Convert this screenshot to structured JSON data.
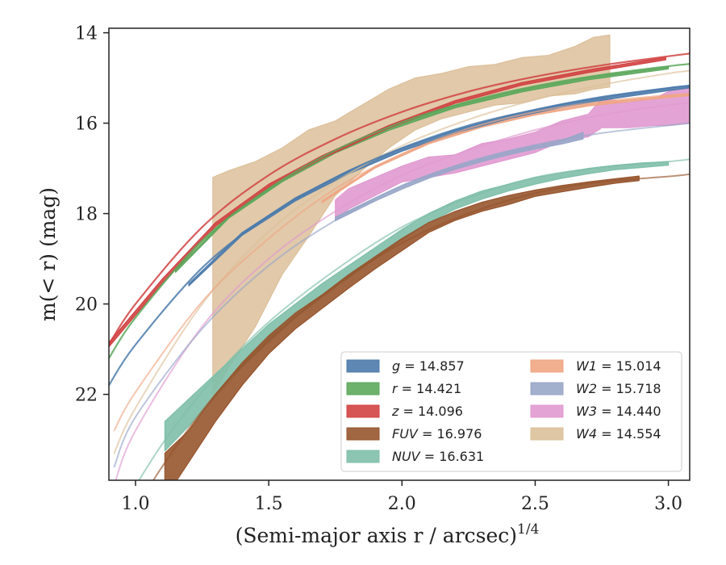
{
  "chart_data": {
    "type": "area",
    "title": "",
    "xlabel": "(Semi-major axis r / arcsec)",
    "xlabel_exponent": "1/4",
    "ylabel": "m(< r) (mag)",
    "xlim": [
      0.9,
      3.08
    ],
    "ylim": [
      23.9,
      13.9
    ],
    "y_inverted": true,
    "x_ticks": [
      1.0,
      1.5,
      2.0,
      2.5,
      3.0
    ],
    "x_tick_labels": [
      "1.0",
      "1.5",
      "2.0",
      "2.5",
      "3.0"
    ],
    "y_ticks": [
      14,
      16,
      18,
      20,
      22
    ],
    "y_tick_labels": [
      "14",
      "16",
      "18",
      "20",
      "22"
    ],
    "grid": false,
    "legend_position": "lower-right",
    "legend_columns": 2,
    "series": [
      {
        "name": "g",
        "label_value": "14.857",
        "color": "#4c7bab",
        "model": [
          [
            0.9,
            21.8
          ],
          [
            1.0,
            20.9
          ],
          [
            1.25,
            19.2
          ],
          [
            1.5,
            18.05
          ],
          [
            1.75,
            17.2
          ],
          [
            2.0,
            16.55
          ],
          [
            2.25,
            16.05
          ],
          [
            2.5,
            15.7
          ],
          [
            2.75,
            15.42
          ],
          [
            3.0,
            15.22
          ],
          [
            3.08,
            15.17
          ]
        ],
        "band": [
          [
            1.2,
            19.55,
            19.6
          ],
          [
            1.4,
            18.42,
            18.48
          ],
          [
            1.6,
            17.65,
            17.72
          ],
          [
            1.8,
            17.05,
            17.12
          ],
          [
            2.0,
            16.55,
            16.62
          ],
          [
            2.2,
            16.15,
            16.22
          ],
          [
            2.4,
            15.83,
            15.9
          ],
          [
            2.6,
            15.58,
            15.65
          ],
          [
            2.8,
            15.38,
            15.45
          ],
          [
            3.0,
            15.22,
            15.28
          ],
          [
            3.08,
            15.16,
            15.22
          ]
        ]
      },
      {
        "name": "r",
        "label_value": "14.421",
        "color": "#5ca85c",
        "model": [
          [
            0.9,
            21.2
          ],
          [
            1.0,
            20.3
          ],
          [
            1.25,
            18.6
          ],
          [
            1.5,
            17.45
          ],
          [
            1.75,
            16.6
          ],
          [
            2.0,
            15.98
          ],
          [
            2.25,
            15.52
          ],
          [
            2.5,
            15.18
          ],
          [
            2.75,
            14.93
          ],
          [
            3.0,
            14.74
          ],
          [
            3.08,
            14.69
          ]
        ],
        "band": [
          [
            1.15,
            19.25,
            19.3
          ],
          [
            1.35,
            18.05,
            18.1
          ],
          [
            1.55,
            17.25,
            17.3
          ],
          [
            1.75,
            16.6,
            16.66
          ],
          [
            1.95,
            16.1,
            16.16
          ],
          [
            2.2,
            15.6,
            15.66
          ],
          [
            2.45,
            15.25,
            15.31
          ],
          [
            2.7,
            14.98,
            15.04
          ],
          [
            3.0,
            14.75,
            14.8
          ]
        ]
      },
      {
        "name": "z",
        "label_value": "14.096",
        "color": "#d14343",
        "model": [
          [
            0.9,
            20.9
          ],
          [
            1.0,
            20.0
          ],
          [
            1.25,
            18.3
          ],
          [
            1.5,
            17.15
          ],
          [
            1.75,
            16.35
          ],
          [
            2.0,
            15.75
          ],
          [
            2.25,
            15.3
          ],
          [
            2.5,
            14.97
          ],
          [
            2.75,
            14.72
          ],
          [
            3.0,
            14.52
          ],
          [
            3.08,
            14.46
          ]
        ],
        "band": [
          [
            0.9,
            20.85,
            20.95
          ],
          [
            1.1,
            19.45,
            19.55
          ],
          [
            1.3,
            18.2,
            18.28
          ],
          [
            1.5,
            17.35,
            17.42
          ],
          [
            1.7,
            16.72,
            16.78
          ],
          [
            1.95,
            16.05,
            16.11
          ],
          [
            2.2,
            15.5,
            15.56
          ],
          [
            2.45,
            15.1,
            15.16
          ],
          [
            2.7,
            14.82,
            14.88
          ],
          [
            2.99,
            14.54,
            14.6
          ]
        ]
      },
      {
        "name": "FUV",
        "label_value": "16.976",
        "color": "#97552d",
        "model": [
          [
            0.9,
            25.5
          ],
          [
            1.1,
            23.6
          ],
          [
            1.3,
            22.0
          ],
          [
            1.5,
            20.8
          ],
          [
            1.75,
            19.6
          ],
          [
            2.0,
            18.65
          ],
          [
            2.25,
            18.0
          ],
          [
            2.5,
            17.55
          ],
          [
            2.75,
            17.3
          ],
          [
            3.0,
            17.18
          ],
          [
            3.08,
            17.13
          ]
        ],
        "band": [
          [
            1.11,
            23.3,
            24.3
          ],
          [
            1.2,
            22.8,
            23.5
          ],
          [
            1.3,
            22.0,
            22.6
          ],
          [
            1.4,
            21.3,
            21.8
          ],
          [
            1.5,
            20.7,
            21.1
          ],
          [
            1.6,
            20.2,
            20.55
          ],
          [
            1.7,
            19.8,
            20.1
          ],
          [
            1.8,
            19.35,
            19.65
          ],
          [
            1.9,
            18.95,
            19.22
          ],
          [
            2.0,
            18.55,
            18.82
          ],
          [
            2.1,
            18.2,
            18.42
          ],
          [
            2.2,
            17.95,
            18.15
          ],
          [
            2.3,
            17.75,
            17.95
          ],
          [
            2.4,
            17.6,
            17.8
          ],
          [
            2.5,
            17.48,
            17.62
          ],
          [
            2.6,
            17.38,
            17.52
          ],
          [
            2.7,
            17.3,
            17.42
          ],
          [
            2.8,
            17.23,
            17.33
          ],
          [
            2.89,
            17.17,
            17.27
          ]
        ]
      },
      {
        "name": "NUV",
        "label_value": "16.631",
        "color": "#7fbfaa",
        "model": [
          [
            0.9,
            25.0
          ],
          [
            1.1,
            23.1
          ],
          [
            1.3,
            21.6
          ],
          [
            1.5,
            20.4
          ],
          [
            1.75,
            19.25
          ],
          [
            2.0,
            18.3
          ],
          [
            2.25,
            17.65
          ],
          [
            2.5,
            17.2
          ],
          [
            2.75,
            16.98
          ],
          [
            3.0,
            16.85
          ],
          [
            3.08,
            16.8
          ]
        ],
        "band": [
          [
            1.11,
            22.6,
            23.25
          ],
          [
            1.2,
            22.1,
            22.7
          ],
          [
            1.3,
            21.55,
            22.05
          ],
          [
            1.4,
            21.0,
            21.4
          ],
          [
            1.5,
            20.45,
            20.85
          ],
          [
            1.6,
            20.0,
            20.3
          ],
          [
            1.7,
            19.55,
            19.85
          ],
          [
            1.8,
            19.15,
            19.42
          ],
          [
            1.9,
            18.75,
            19.0
          ],
          [
            2.0,
            18.35,
            18.58
          ],
          [
            2.1,
            18.0,
            18.2
          ],
          [
            2.2,
            17.72,
            17.9
          ],
          [
            2.3,
            17.5,
            17.68
          ],
          [
            2.4,
            17.35,
            17.5
          ],
          [
            2.5,
            17.2,
            17.35
          ],
          [
            2.6,
            17.1,
            17.22
          ],
          [
            2.7,
            17.0,
            17.12
          ],
          [
            2.8,
            16.93,
            17.03
          ],
          [
            2.9,
            16.88,
            16.98
          ],
          [
            3.0,
            16.85,
            16.93
          ]
        ]
      },
      {
        "name": "W1",
        "label_value": "15.014",
        "color": "#f0a684",
        "model": [
          [
            0.92,
            22.8
          ],
          [
            1.0,
            21.95
          ],
          [
            1.25,
            19.95
          ],
          [
            1.5,
            18.55
          ],
          [
            1.75,
            17.45
          ],
          [
            2.0,
            16.68
          ],
          [
            2.25,
            16.12
          ],
          [
            2.5,
            15.75
          ],
          [
            2.75,
            15.52
          ],
          [
            3.0,
            15.38
          ],
          [
            3.08,
            15.35
          ]
        ],
        "band": [
          [
            1.7,
            17.72,
            17.76
          ],
          [
            1.9,
            16.95,
            16.99
          ],
          [
            2.1,
            16.42,
            16.46
          ],
          [
            2.3,
            16.05,
            16.09
          ],
          [
            2.5,
            15.78,
            15.82
          ],
          [
            2.7,
            15.58,
            15.62
          ],
          [
            2.9,
            15.45,
            15.49
          ],
          [
            3.08,
            15.35,
            15.39
          ]
        ]
      },
      {
        "name": "W2",
        "label_value": "15.718",
        "color": "#98a6c8",
        "model": [
          [
            0.92,
            23.6
          ],
          [
            1.0,
            22.5
          ],
          [
            1.25,
            20.55
          ],
          [
            1.5,
            19.15
          ],
          [
            1.75,
            18.15
          ],
          [
            2.0,
            17.38
          ],
          [
            2.25,
            16.85
          ],
          [
            2.5,
            16.48
          ],
          [
            2.75,
            16.22
          ],
          [
            3.0,
            16.05
          ],
          [
            3.08,
            16.0
          ]
        ],
        "band": [
          [
            1.75,
            18.08,
            18.16
          ],
          [
            1.9,
            17.65,
            17.72
          ],
          [
            2.0,
            17.38,
            17.46
          ],
          [
            2.1,
            17.15,
            17.22
          ],
          [
            2.2,
            16.95,
            17.02
          ],
          [
            2.3,
            16.78,
            16.85
          ],
          [
            2.4,
            16.62,
            16.7
          ],
          [
            2.5,
            16.5,
            16.57
          ],
          [
            2.6,
            16.38,
            16.46
          ],
          [
            2.68,
            16.2,
            16.35
          ]
        ]
      },
      {
        "name": "W3",
        "label_value": "14.440",
        "color": "#e09ad0",
        "model": [
          [
            0.92,
            24.0
          ],
          [
            1.0,
            22.8
          ],
          [
            1.25,
            20.5
          ],
          [
            1.5,
            19.0
          ],
          [
            1.75,
            17.95
          ],
          [
            2.0,
            17.15
          ],
          [
            2.25,
            16.6
          ],
          [
            2.5,
            16.15
          ],
          [
            2.75,
            15.82
          ],
          [
            3.0,
            15.6
          ],
          [
            3.08,
            15.55
          ]
        ],
        "band": [
          [
            1.75,
            17.7,
            18.15
          ],
          [
            1.8,
            17.45,
            17.9
          ],
          [
            1.9,
            17.2,
            17.6
          ],
          [
            2.0,
            16.95,
            17.3
          ],
          [
            2.1,
            16.75,
            17.2
          ],
          [
            2.2,
            16.7,
            17.1
          ],
          [
            2.3,
            16.45,
            16.95
          ],
          [
            2.4,
            16.35,
            16.8
          ],
          [
            2.5,
            16.2,
            16.65
          ],
          [
            2.6,
            15.95,
            16.4
          ],
          [
            2.7,
            15.8,
            16.3
          ],
          [
            2.75,
            15.45,
            16.1
          ],
          [
            2.85,
            15.55,
            16.1
          ],
          [
            2.95,
            15.45,
            16.05
          ],
          [
            3.0,
            15.3,
            16.05
          ],
          [
            3.08,
            15.2,
            16.0
          ]
        ]
      },
      {
        "name": "W4",
        "label_value": "14.554",
        "color": "#dcc09a",
        "model": [
          [
            0.92,
            23.3
          ],
          [
            1.0,
            22.3
          ],
          [
            1.25,
            20.0
          ],
          [
            1.5,
            18.4
          ],
          [
            1.75,
            17.3
          ],
          [
            2.0,
            16.5
          ],
          [
            2.25,
            15.92
          ],
          [
            2.5,
            15.48
          ],
          [
            2.75,
            15.15
          ],
          [
            3.0,
            14.9
          ],
          [
            3.08,
            14.84
          ]
        ],
        "band": [
          [
            1.29,
            17.2,
            22.0
          ],
          [
            1.35,
            17.05,
            21.4
          ],
          [
            1.45,
            16.85,
            20.5
          ],
          [
            1.55,
            16.55,
            19.35
          ],
          [
            1.65,
            16.15,
            18.5
          ],
          [
            1.75,
            15.95,
            17.6
          ],
          [
            1.85,
            15.6,
            17.05
          ],
          [
            1.95,
            15.25,
            16.55
          ],
          [
            2.05,
            15.0,
            16.15
          ],
          [
            2.15,
            14.9,
            15.9
          ],
          [
            2.25,
            14.75,
            15.75
          ],
          [
            2.35,
            14.7,
            15.6
          ],
          [
            2.45,
            14.55,
            15.55
          ],
          [
            2.55,
            14.5,
            15.4
          ],
          [
            2.65,
            14.3,
            15.35
          ],
          [
            2.72,
            14.1,
            15.25
          ],
          [
            2.78,
            14.05,
            15.2
          ]
        ]
      }
    ]
  }
}
